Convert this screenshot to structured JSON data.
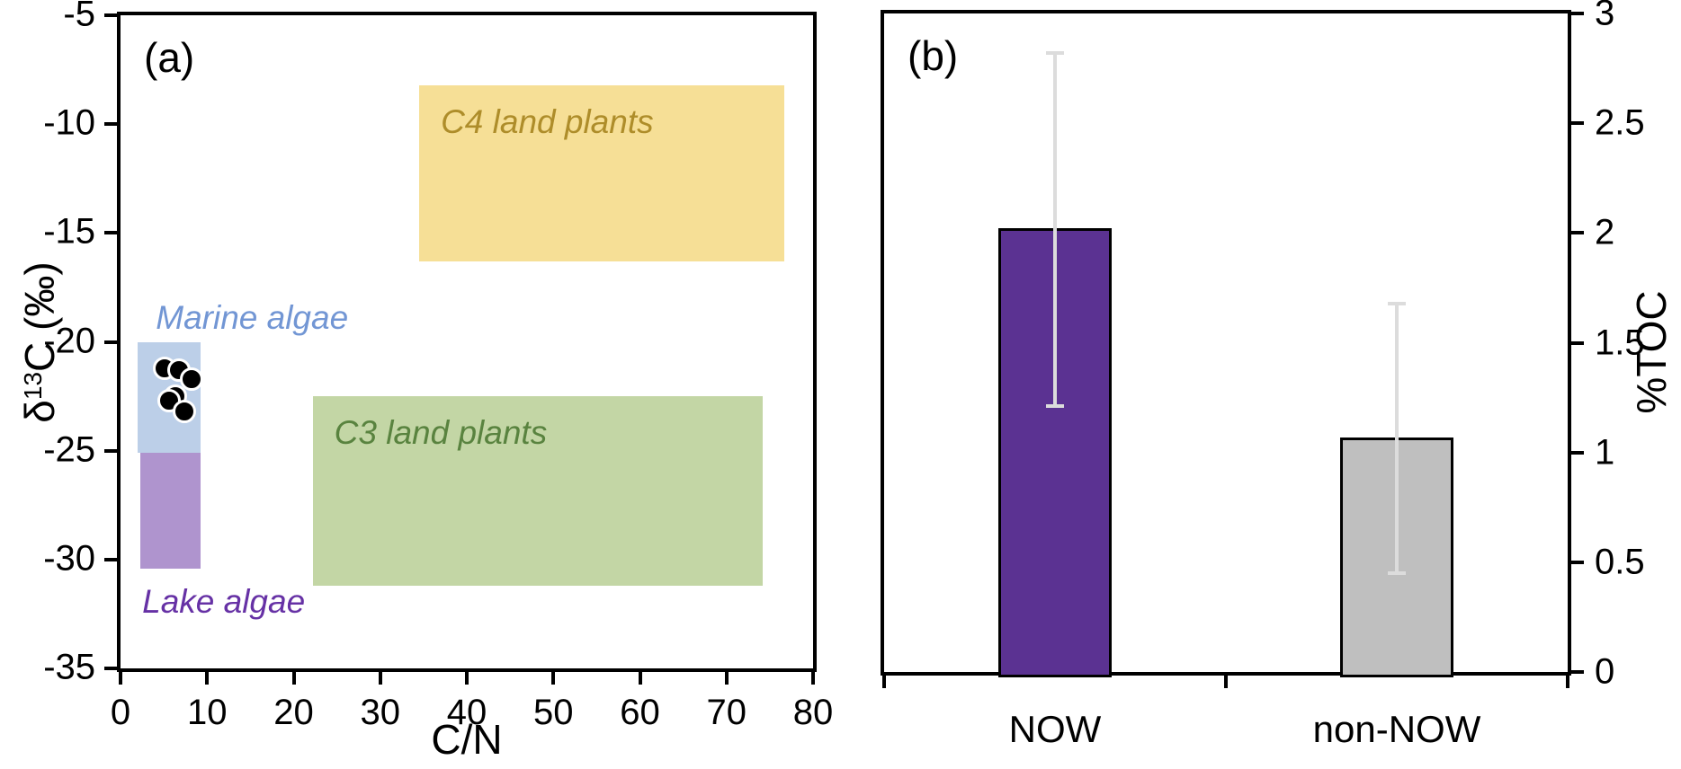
{
  "figure": {
    "background": "#ffffff"
  },
  "chart_data": [
    {
      "id": "panel_a",
      "panel_letter": "(a)",
      "type": "scatter",
      "xlabel": "C/N",
      "ylabel": "δ13C (‰)",
      "ylabel_parts": {
        "delta": "δ",
        "sup": "13",
        "rest": "C (‰)"
      },
      "xlim": [
        0,
        80
      ],
      "ylim": [
        -35,
        -5
      ],
      "x_ticks": [
        0,
        10,
        20,
        30,
        40,
        50,
        60,
        70,
        80
      ],
      "y_ticks": [
        -5,
        -10,
        -15,
        -20,
        -25,
        -30,
        -35
      ],
      "grid": false,
      "regions": [
        {
          "label": "C4 land plants",
          "x": [
            34.5,
            76.7
          ],
          "y": [
            -16.3,
            -8.2
          ],
          "fill": "#F6DF96",
          "label_color": "#AE8D2A",
          "label_pos": "inside-top-left"
        },
        {
          "label": "C3 land plants",
          "x": [
            22.2,
            74.2
          ],
          "y": [
            -31.2,
            -22.5
          ],
          "fill": "#C3D6A5",
          "label_color": "#59833F",
          "label_pos": "inside-top-left"
        },
        {
          "label": "Marine algae",
          "x": [
            2.0,
            9.2
          ],
          "y": [
            -25.1,
            -20.0
          ],
          "fill": "#BCCFE8",
          "label_color": "#7296D4",
          "label_pos": "above"
        },
        {
          "label": "Lake algae",
          "x": [
            2.3,
            9.2
          ],
          "y": [
            -30.4,
            -25.1
          ],
          "fill": "#AF94CE",
          "label_color": "#6631A5",
          "label_pos": "below"
        }
      ],
      "points": {
        "marker": "filled-black-circle-white-rim",
        "data": [
          [
            5.1,
            -21.2
          ],
          [
            6.8,
            -21.3
          ],
          [
            8.2,
            -21.7
          ],
          [
            6.3,
            -22.5
          ],
          [
            5.6,
            -22.7
          ],
          [
            7.4,
            -23.2
          ]
        ]
      }
    },
    {
      "id": "panel_b",
      "panel_letter": "(b)",
      "type": "bar",
      "ylabel": "%TOC",
      "ylabel_side": "right",
      "ylim": [
        0,
        3
      ],
      "y_ticks": [
        0,
        0.5,
        1,
        1.5,
        2,
        2.5,
        3
      ],
      "grid": false,
      "categories": [
        "NOW",
        "non-NOW"
      ],
      "values": [
        2.02,
        1.07
      ],
      "error_high": [
        2.82,
        1.68
      ],
      "error_low": [
        1.21,
        0.45
      ],
      "bar_colors": [
        "#5B3292",
        "#BFBFBF"
      ],
      "bar_border_color": "#000000",
      "error_color": "#DCDCDC"
    }
  ]
}
